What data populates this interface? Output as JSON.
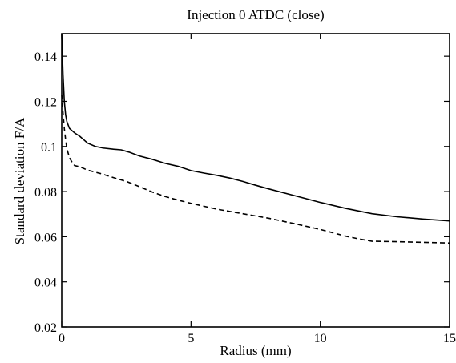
{
  "chart_data": {
    "type": "line",
    "title": "Injection 0 ATDC (close)",
    "xlabel": "Radius (mm)",
    "ylabel": "Standard deviation F/A",
    "xlim": [
      0,
      15
    ],
    "ylim": [
      0.02,
      0.15
    ],
    "xticks": [
      0,
      5,
      10,
      15
    ],
    "yticks": [
      0.02,
      0.04,
      0.06,
      0.08,
      0.1,
      0.12,
      0.14
    ],
    "xtick_labels": [
      "0",
      "5",
      "10",
      "15"
    ],
    "ytick_labels": [
      "0.02",
      "0.04",
      "0.06",
      "0.08",
      "0.1",
      "0.12",
      "0.14"
    ],
    "grid": false,
    "legend": false,
    "series": [
      {
        "style": "solid",
        "x": [
          0.0,
          0.05,
          0.1,
          0.15,
          0.2,
          0.3,
          0.4,
          0.5,
          0.7,
          1.0,
          1.3,
          1.6,
          2.0,
          2.3,
          2.6,
          3.0,
          3.5,
          4.0,
          4.5,
          5.0,
          5.5,
          6.0,
          6.5,
          7.0,
          7.5,
          8.0,
          9.0,
          10.0,
          11.0,
          12.0,
          13.0,
          14.0,
          15.0
        ],
        "y": [
          0.15,
          0.132,
          0.12,
          0.114,
          0.111,
          0.108,
          0.107,
          0.106,
          0.1045,
          0.1015,
          0.1,
          0.0993,
          0.0988,
          0.0985,
          0.0975,
          0.0958,
          0.0943,
          0.0925,
          0.0912,
          0.0893,
          0.0882,
          0.0872,
          0.086,
          0.0845,
          0.0828,
          0.0812,
          0.0782,
          0.0752,
          0.0725,
          0.0702,
          0.0688,
          0.0678,
          0.067
        ]
      },
      {
        "style": "dashed",
        "x": [
          0.0,
          0.05,
          0.1,
          0.15,
          0.2,
          0.3,
          0.4,
          0.5,
          0.7,
          1.0,
          1.5,
          2.0,
          2.5,
          3.0,
          3.5,
          4.0,
          4.5,
          5.0,
          6.0,
          7.0,
          8.0,
          9.0,
          10.0,
          11.0,
          11.5,
          12.0,
          13.0,
          14.0,
          15.0
        ],
        "y": [
          0.123,
          0.115,
          0.108,
          0.103,
          0.099,
          0.095,
          0.093,
          0.0915,
          0.091,
          0.0895,
          0.088,
          0.0862,
          0.0845,
          0.0822,
          0.0798,
          0.0778,
          0.0762,
          0.0748,
          0.0722,
          0.0702,
          0.0682,
          0.0658,
          0.0632,
          0.0602,
          0.059,
          0.058,
          0.0578,
          0.0575,
          0.0572
        ]
      }
    ]
  }
}
